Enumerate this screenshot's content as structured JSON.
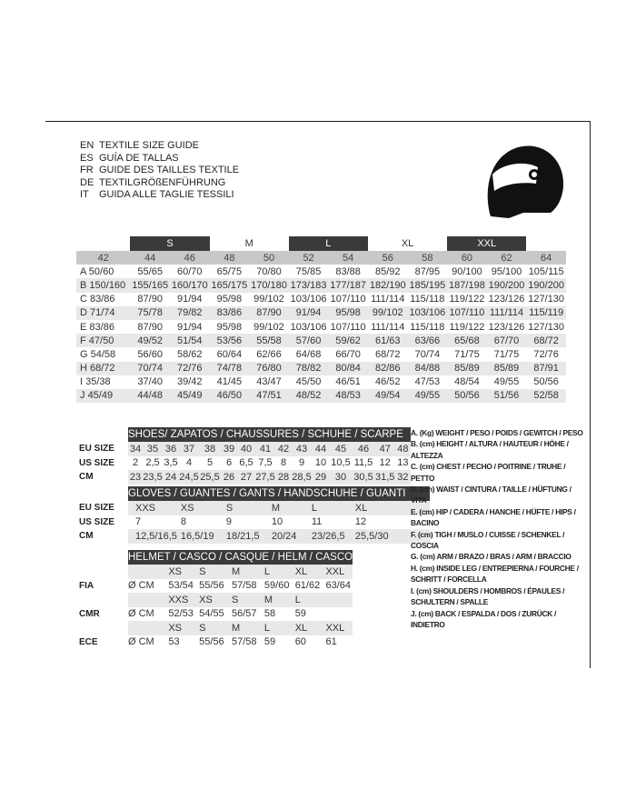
{
  "titles": [
    {
      "lang": "EN",
      "text": "TEXTILE SIZE GUIDE"
    },
    {
      "lang": "ES",
      "text": "GUÍA DE TALLAS"
    },
    {
      "lang": "FR",
      "text": "GUIDE DES TAILLES TEXTILE"
    },
    {
      "lang": "DE",
      "text": "TEXTILGRÖßENFÜHRUNG"
    },
    {
      "lang": "IT",
      "text": "GUIDA ALLE TAGLIE TESSILI"
    }
  ],
  "icon": "helmet-icon",
  "textile": {
    "size_bands": [
      {
        "label": "",
        "span": 1,
        "dark": false
      },
      {
        "label": "S",
        "span": 2,
        "dark": true
      },
      {
        "label": "M",
        "span": 2,
        "dark": false
      },
      {
        "label": "L",
        "span": 2,
        "dark": true
      },
      {
        "label": "XL",
        "span": 2,
        "dark": false
      },
      {
        "label": "XXL",
        "span": 2,
        "dark": true
      },
      {
        "label": "",
        "span": 1,
        "dark": false
      }
    ],
    "sizes": [
      "42",
      "44",
      "46",
      "48",
      "50",
      "52",
      "54",
      "56",
      "58",
      "60",
      "62",
      "64"
    ],
    "rows": [
      {
        "key": "A",
        "values": [
          "50/60",
          "55/65",
          "60/70",
          "65/75",
          "70/80",
          "75/85",
          "83/88",
          "85/92",
          "87/95",
          "90/100",
          "95/100",
          "105/115"
        ]
      },
      {
        "key": "B",
        "values": [
          "150/160",
          "155/165",
          "160/170",
          "165/175",
          "170/180",
          "173/183",
          "177/187",
          "182/190",
          "185/195",
          "187/198",
          "190/200",
          "190/200"
        ]
      },
      {
        "key": "C",
        "values": [
          "83/86",
          "87/90",
          "91/94",
          "95/98",
          "99/102",
          "103/106",
          "107/110",
          "111/114",
          "115/118",
          "119/122",
          "123/126",
          "127/130"
        ]
      },
      {
        "key": "D",
        "values": [
          "71/74",
          "75/78",
          "79/82",
          "83/86",
          "87/90",
          "91/94",
          "95/98",
          "99/102",
          "103/106",
          "107/110",
          "111/114",
          "115/119"
        ]
      },
      {
        "key": "E",
        "values": [
          "83/86",
          "87/90",
          "91/94",
          "95/98",
          "99/102",
          "103/106",
          "107/110",
          "111/114",
          "115/118",
          "119/122",
          "123/126",
          "127/130"
        ]
      },
      {
        "key": "F",
        "values": [
          "47/50",
          "49/52",
          "51/54",
          "53/56",
          "55/58",
          "57/60",
          "59/62",
          "61/63",
          "63/66",
          "65/68",
          "67/70",
          "68/72"
        ]
      },
      {
        "key": "G",
        "values": [
          "54/58",
          "56/60",
          "58/62",
          "60/64",
          "62/66",
          "64/68",
          "66/70",
          "68/72",
          "70/74",
          "71/75",
          "71/75",
          "72/76"
        ]
      },
      {
        "key": "H",
        "values": [
          "68/72",
          "70/74",
          "72/76",
          "74/78",
          "76/80",
          "78/82",
          "80/84",
          "82/86",
          "84/88",
          "85/89",
          "85/89",
          "87/91"
        ]
      },
      {
        "key": "I",
        "values": [
          "35/38",
          "37/40",
          "39/42",
          "41/45",
          "43/47",
          "45/50",
          "46/51",
          "46/52",
          "47/53",
          "48/54",
          "49/55",
          "50/56"
        ]
      },
      {
        "key": "J",
        "values": [
          "45/49",
          "44/48",
          "45/49",
          "46/50",
          "47/51",
          "48/52",
          "48/53",
          "49/54",
          "49/55",
          "50/56",
          "51/56",
          "52/58"
        ]
      }
    ]
  },
  "shoes": {
    "title": "SHOES/ ZAPATOS / CHAUSSURES / SCHUHE / SCARPE",
    "rows": [
      {
        "label": "EU SIZE",
        "values": [
          "34",
          "35",
          "36",
          "37",
          "38",
          "39",
          "40",
          "41",
          "42",
          "43",
          "44",
          "45",
          "46",
          "47",
          "48"
        ]
      },
      {
        "label": "US SIZE",
        "values": [
          "2",
          "2,5",
          "3,5",
          "4",
          "5",
          "6",
          "6,5",
          "7,5",
          "8",
          "9",
          "10",
          "10,5",
          "11,5",
          "12",
          "13"
        ]
      },
      {
        "label": "CM",
        "values": [
          "23",
          "23,5",
          "24",
          "24,5",
          "25,5",
          "26",
          "27",
          "27,5",
          "28",
          "28,5",
          "29",
          "30",
          "30,5",
          "31,5",
          "32"
        ]
      }
    ]
  },
  "gloves": {
    "title": "GLOVES / GUANTES / GANTS / HANDSCHUHE / GUANTI",
    "rows": [
      {
        "label": "EU SIZE",
        "values": [
          "XXS",
          "XS",
          "S",
          "M",
          "L",
          "XL"
        ]
      },
      {
        "label": "US SIZE",
        "values": [
          "7",
          "8",
          "9",
          "10",
          "11",
          "12"
        ]
      },
      {
        "label": "CM",
        "values": [
          "12,5/16,5",
          "16,5/19",
          "18/21,5",
          "20/24",
          "23/26,5",
          "25,5/30"
        ]
      }
    ]
  },
  "helmet": {
    "title": "HELMET / CASCO / CASQUE / HELM / CASCO",
    "unit": "Ø CM",
    "groups": [
      {
        "label": "FIA",
        "sizes": [
          "XS",
          "S",
          "M",
          "L",
          "XL",
          "XXL"
        ],
        "values": [
          "53/54",
          "55/56",
          "57/58",
          "59/60",
          "61/62",
          "63/64"
        ]
      },
      {
        "label": "CMR",
        "sizes": [
          "XXS",
          "XS",
          "S",
          "M",
          "L",
          ""
        ],
        "values": [
          "52/53",
          "54/55",
          "56/57",
          "58",
          "59",
          ""
        ]
      },
      {
        "label": "ECE",
        "sizes": [
          "XS",
          "S",
          "M",
          "L",
          "XL",
          "XXL"
        ],
        "values": [
          "53",
          "55/56",
          "57/58",
          "59",
          "60",
          "61"
        ]
      }
    ]
  },
  "legend": [
    "A. (Kg) WEIGHT / PESO / POIDS / GEWITCH / PESO",
    "B. (cm) HEIGHT / ALTURA / HAUTEUR / HÖHE / ALTEZZA",
    "C. (cm) CHEST / PECHO / POITRINE / TRUHE / PETTO",
    "D. (cm) WAIST / CINTURA / TAILLE / HÜFTUNG / VITA",
    "E. (cm) HIP / CADERA / HANCHE / HÜFTE / HIPS /  BACINO",
    "F.  (cm) TIGH / MUSLO / CUISSE / SCHENKEL / COSCIA",
    "G. (cm) ARM  / BRAZO / BRAS / ARM / BRACCIO",
    "H. (cm) INSIDE LEG / ENTREPIERNA / FOURCHE / SCHRITT / FORCELLA",
    "I.  (cm) SHOULDERS / HOMBROS / ÉPAULES / SCHULTERN / SPALLE",
    "J. (cm) BACK / ESPALDA / DOS / ZURÜCK / INDIETRO"
  ]
}
